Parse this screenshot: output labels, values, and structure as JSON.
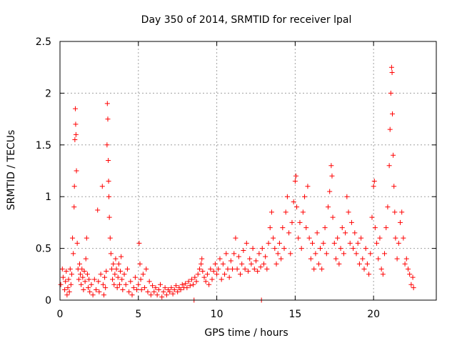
{
  "chart_data": {
    "type": "scatter",
    "title": "Day 350 of 2014, SRMTID for receiver lpal",
    "xlabel": "GPS time / hours",
    "ylabel": "SRMTID / TECUs",
    "xlim": [
      0,
      24
    ],
    "ylim": [
      0,
      2.5
    ],
    "xticks": [
      0,
      5,
      10,
      15,
      20
    ],
    "yticks": [
      0,
      0.5,
      1,
      1.5,
      2,
      2.5
    ],
    "xtick_labels": [
      "0",
      "5",
      "10",
      "15",
      "20"
    ],
    "ytick_labels": [
      "0",
      "0.5",
      "1",
      "1.5",
      "2",
      "2.5"
    ],
    "grid": true,
    "marker": "+",
    "marker_color": "#ff0000",
    "series": [
      {
        "name": "SRMTID",
        "points": [
          [
            0.05,
            0.15
          ],
          [
            0.15,
            0.3
          ],
          [
            0.2,
            0.22
          ],
          [
            0.3,
            0.1
          ],
          [
            0.35,
            0.18
          ],
          [
            0.4,
            0.28
          ],
          [
            0.45,
            0.05
          ],
          [
            0.5,
            0.12
          ],
          [
            0.55,
            0.2
          ],
          [
            0.6,
            0.08
          ],
          [
            0.65,
            0.3
          ],
          [
            0.7,
            0.15
          ],
          [
            0.75,
            0.25
          ],
          [
            0.8,
            0.6
          ],
          [
            0.85,
            0.45
          ],
          [
            0.9,
            0.9
          ],
          [
            0.92,
            1.1
          ],
          [
            0.95,
            1.55
          ],
          [
            0.98,
            1.85
          ],
          [
            1.0,
            1.7
          ],
          [
            1.02,
            1.6
          ],
          [
            1.05,
            1.25
          ],
          [
            1.1,
            0.55
          ],
          [
            1.15,
            0.3
          ],
          [
            1.2,
            0.2
          ],
          [
            1.25,
            0.35
          ],
          [
            1.3,
            0.25
          ],
          [
            1.35,
            0.15
          ],
          [
            1.4,
            0.3
          ],
          [
            1.45,
            0.22
          ],
          [
            1.5,
            0.1
          ],
          [
            1.55,
            0.28
          ],
          [
            1.6,
            0.18
          ],
          [
            1.65,
            0.4
          ],
          [
            1.7,
            0.6
          ],
          [
            1.75,
            0.25
          ],
          [
            1.8,
            0.12
          ],
          [
            1.85,
            0.2
          ],
          [
            1.9,
            0.08
          ],
          [
            2.0,
            0.15
          ],
          [
            2.1,
            0.05
          ],
          [
            2.2,
            0.2
          ],
          [
            2.3,
            0.1
          ],
          [
            2.4,
            0.87
          ],
          [
            2.45,
            0.18
          ],
          [
            2.5,
            0.08
          ],
          [
            2.6,
            0.25
          ],
          [
            2.7,
            1.1
          ],
          [
            2.75,
            0.15
          ],
          [
            2.8,
            0.05
          ],
          [
            2.85,
            0.22
          ],
          [
            2.9,
            0.12
          ],
          [
            2.95,
            0.28
          ],
          [
            3.0,
            1.5
          ],
          [
            3.02,
            1.9
          ],
          [
            3.05,
            1.75
          ],
          [
            3.08,
            1.35
          ],
          [
            3.1,
            1.15
          ],
          [
            3.12,
            1.0
          ],
          [
            3.15,
            0.8
          ],
          [
            3.2,
            0.6
          ],
          [
            3.25,
            0.45
          ],
          [
            3.3,
            0.3
          ],
          [
            3.35,
            0.2
          ],
          [
            3.4,
            0.35
          ],
          [
            3.45,
            0.15
          ],
          [
            3.5,
            0.25
          ],
          [
            3.55,
            0.4
          ],
          [
            3.6,
            0.3
          ],
          [
            3.65,
            0.12
          ],
          [
            3.7,
            0.22
          ],
          [
            3.75,
            0.35
          ],
          [
            3.8,
            0.15
          ],
          [
            3.85,
            0.28
          ],
          [
            3.9,
            0.42
          ],
          [
            3.95,
            0.2
          ],
          [
            4.0,
            0.1
          ],
          [
            4.1,
            0.25
          ],
          [
            4.2,
            0.15
          ],
          [
            4.3,
            0.3
          ],
          [
            4.4,
            0.08
          ],
          [
            4.5,
            0.18
          ],
          [
            4.6,
            0.05
          ],
          [
            4.7,
            0.12
          ],
          [
            4.8,
            0.22
          ],
          [
            4.9,
            0.1
          ],
          [
            5.0,
            0.15
          ],
          [
            5.05,
            0.55
          ],
          [
            5.1,
            0.35
          ],
          [
            5.15,
            0.2
          ],
          [
            5.2,
            0.1
          ],
          [
            5.3,
            0.25
          ],
          [
            5.4,
            0.12
          ],
          [
            5.5,
            0.3
          ],
          [
            5.6,
            0.08
          ],
          [
            5.7,
            0.18
          ],
          [
            5.8,
            0.05
          ],
          [
            5.9,
            0.14
          ],
          [
            6.0,
            0.08
          ],
          [
            6.1,
            0.12
          ],
          [
            6.2,
            0.05
          ],
          [
            6.3,
            0.1
          ],
          [
            6.4,
            0.15
          ],
          [
            6.5,
            0.03
          ],
          [
            6.6,
            0.08
          ],
          [
            6.7,
            0.12
          ],
          [
            6.8,
            0.05
          ],
          [
            6.9,
            0.1
          ],
          [
            7.0,
            0.08
          ],
          [
            7.1,
            0.12
          ],
          [
            7.2,
            0.06
          ],
          [
            7.3,
            0.1
          ],
          [
            7.4,
            0.14
          ],
          [
            7.5,
            0.08
          ],
          [
            7.6,
            0.12
          ],
          [
            7.7,
            0.1
          ],
          [
            7.8,
            0.15
          ],
          [
            7.9,
            0.12
          ],
          [
            8.0,
            0.16
          ],
          [
            8.1,
            0.12
          ],
          [
            8.2,
            0.18
          ],
          [
            8.3,
            0.14
          ],
          [
            8.4,
            0.2
          ],
          [
            8.5,
            0.15
          ],
          [
            8.55,
            0.0
          ],
          [
            8.6,
            0.22
          ],
          [
            8.7,
            0.18
          ],
          [
            8.8,
            0.25
          ],
          [
            8.9,
            0.3
          ],
          [
            9.0,
            0.35
          ],
          [
            9.05,
            0.4
          ],
          [
            9.1,
            0.28
          ],
          [
            9.2,
            0.22
          ],
          [
            9.3,
            0.18
          ],
          [
            9.4,
            0.25
          ],
          [
            9.5,
            0.15
          ],
          [
            9.6,
            0.3
          ],
          [
            9.7,
            0.2
          ],
          [
            9.8,
            0.28
          ],
          [
            9.9,
            0.35
          ],
          [
            10.0,
            0.25
          ],
          [
            10.1,
            0.3
          ],
          [
            10.2,
            0.4
          ],
          [
            10.3,
            0.2
          ],
          [
            10.4,
            0.35
          ],
          [
            10.5,
            0.25
          ],
          [
            10.6,
            0.45
          ],
          [
            10.7,
            0.3
          ],
          [
            10.8,
            0.22
          ],
          [
            10.9,
            0.38
          ],
          [
            11.0,
            0.3
          ],
          [
            11.1,
            0.45
          ],
          [
            11.2,
            0.6
          ],
          [
            11.3,
            0.3
          ],
          [
            11.4,
            0.42
          ],
          [
            11.5,
            0.25
          ],
          [
            11.6,
            0.35
          ],
          [
            11.7,
            0.48
          ],
          [
            11.8,
            0.3
          ],
          [
            11.9,
            0.55
          ],
          [
            12.0,
            0.28
          ],
          [
            12.1,
            0.4
          ],
          [
            12.2,
            0.35
          ],
          [
            12.3,
            0.5
          ],
          [
            12.4,
            0.3
          ],
          [
            12.5,
            0.38
          ],
          [
            12.6,
            0.28
          ],
          [
            12.7,
            0.45
          ],
          [
            12.8,
            0.32
          ],
          [
            12.85,
            0.0
          ],
          [
            12.9,
            0.5
          ],
          [
            13.0,
            0.35
          ],
          [
            13.1,
            0.42
          ],
          [
            13.2,
            0.3
          ],
          [
            13.3,
            0.55
          ],
          [
            13.4,
            0.7
          ],
          [
            13.5,
            0.85
          ],
          [
            13.6,
            0.6
          ],
          [
            13.7,
            0.5
          ],
          [
            13.8,
            0.35
          ],
          [
            13.9,
            0.45
          ],
          [
            14.0,
            0.55
          ],
          [
            14.1,
            0.4
          ],
          [
            14.2,
            0.7
          ],
          [
            14.3,
            0.5
          ],
          [
            14.4,
            0.85
          ],
          [
            14.5,
            1.0
          ],
          [
            14.6,
            0.65
          ],
          [
            14.7,
            0.45
          ],
          [
            14.8,
            0.75
          ],
          [
            14.9,
            0.95
          ],
          [
            15.0,
            1.15
          ],
          [
            15.05,
            1.2
          ],
          [
            15.1,
            0.9
          ],
          [
            15.2,
            0.6
          ],
          [
            15.3,
            0.75
          ],
          [
            15.4,
            0.5
          ],
          [
            15.5,
            0.85
          ],
          [
            15.6,
            1.0
          ],
          [
            15.7,
            0.7
          ],
          [
            15.8,
            1.1
          ],
          [
            15.9,
            0.6
          ],
          [
            16.0,
            0.4
          ],
          [
            16.1,
            0.55
          ],
          [
            16.2,
            0.3
          ],
          [
            16.3,
            0.45
          ],
          [
            16.4,
            0.65
          ],
          [
            16.5,
            0.35
          ],
          [
            16.6,
            0.5
          ],
          [
            16.7,
            0.3
          ],
          [
            16.8,
            0.55
          ],
          [
            16.9,
            0.7
          ],
          [
            17.0,
            0.45
          ],
          [
            17.1,
            0.9
          ],
          [
            17.2,
            1.05
          ],
          [
            17.3,
            1.3
          ],
          [
            17.35,
            1.2
          ],
          [
            17.4,
            0.8
          ],
          [
            17.5,
            0.55
          ],
          [
            17.6,
            0.4
          ],
          [
            17.7,
            0.6
          ],
          [
            17.8,
            0.35
          ],
          [
            17.9,
            0.5
          ],
          [
            18.0,
            0.7
          ],
          [
            18.1,
            0.45
          ],
          [
            18.2,
            0.65
          ],
          [
            18.3,
            1.0
          ],
          [
            18.4,
            0.85
          ],
          [
            18.5,
            0.55
          ],
          [
            18.6,
            0.75
          ],
          [
            18.7,
            0.5
          ],
          [
            18.8,
            0.65
          ],
          [
            18.9,
            0.45
          ],
          [
            19.0,
            0.55
          ],
          [
            19.1,
            0.35
          ],
          [
            19.2,
            0.6
          ],
          [
            19.3,
            0.4
          ],
          [
            19.4,
            0.3
          ],
          [
            19.5,
            0.5
          ],
          [
            19.6,
            0.35
          ],
          [
            19.7,
            0.25
          ],
          [
            19.8,
            0.45
          ],
          [
            19.9,
            0.8
          ],
          [
            20.0,
            1.1
          ],
          [
            20.05,
            1.15
          ],
          [
            20.1,
            0.7
          ],
          [
            20.2,
            0.55
          ],
          [
            20.3,
            0.4
          ],
          [
            20.4,
            0.6
          ],
          [
            20.5,
            0.3
          ],
          [
            20.6,
            0.25
          ],
          [
            20.7,
            0.45
          ],
          [
            20.8,
            0.7
          ],
          [
            20.9,
            0.9
          ],
          [
            21.0,
            1.3
          ],
          [
            21.05,
            1.65
          ],
          [
            21.1,
            2.0
          ],
          [
            21.15,
            2.25
          ],
          [
            21.18,
            2.2
          ],
          [
            21.2,
            1.8
          ],
          [
            21.25,
            1.4
          ],
          [
            21.3,
            1.1
          ],
          [
            21.35,
            0.85
          ],
          [
            21.4,
            0.6
          ],
          [
            21.5,
            0.4
          ],
          [
            21.6,
            0.55
          ],
          [
            21.7,
            0.75
          ],
          [
            21.8,
            0.85
          ],
          [
            21.9,
            0.6
          ],
          [
            22.0,
            0.35
          ],
          [
            22.1,
            0.4
          ],
          [
            22.2,
            0.3
          ],
          [
            22.3,
            0.25
          ],
          [
            22.4,
            0.15
          ],
          [
            22.5,
            0.22
          ],
          [
            22.55,
            0.12
          ]
        ]
      }
    ]
  }
}
